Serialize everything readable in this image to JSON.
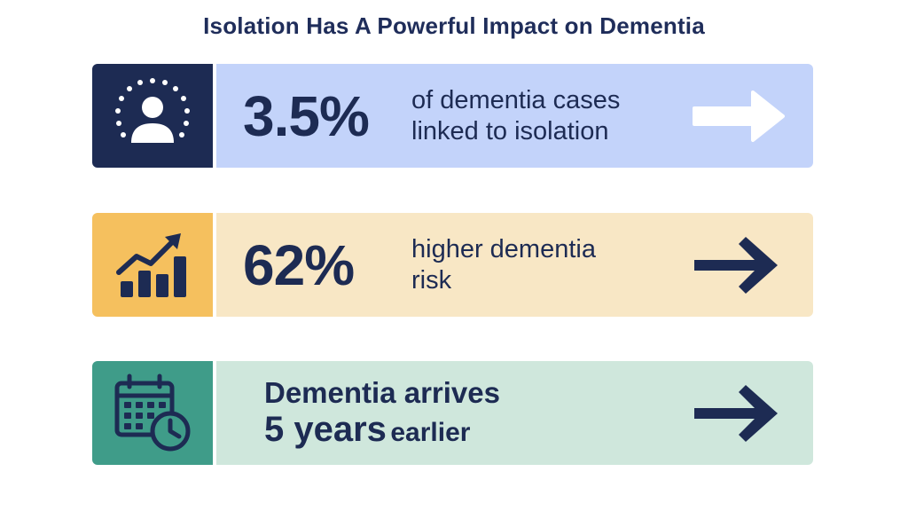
{
  "title": "Isolation Has A Powerful Impact on Dementia",
  "colors": {
    "navy": "#1d2b53",
    "card1_icon_bg": "#1d2b53",
    "card1_body_bg": "#c3d3fa",
    "card2_icon_bg": "#f5c05e",
    "card2_body_bg": "#f8e7c5",
    "card3_icon_bg": "#3f9c89",
    "card3_body_bg": "#cfe7dc"
  },
  "cards": [
    {
      "icon": "person-icon",
      "number": "3.5%",
      "desc_line1": "of dementia cases",
      "desc_line2": "linked to isolation",
      "arrow": "arrow-right-icon"
    },
    {
      "icon": "bar-chart-trend-icon",
      "number": "62%",
      "desc_line1": "higher dementia",
      "desc_line2": "risk",
      "arrow": "arrow-right-icon"
    },
    {
      "icon": "calendar-clock-icon",
      "line1": "Dementia arrives",
      "line2_big": "5 years",
      "line2_small": "earlier",
      "arrow": "arrow-right-icon"
    }
  ]
}
